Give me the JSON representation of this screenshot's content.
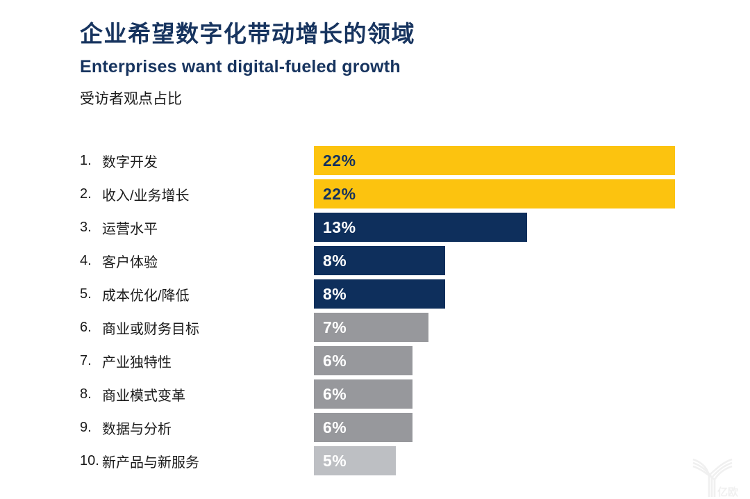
{
  "header": {
    "title": "企业希望数字化带动增长的领域",
    "subtitle": "Enterprises want digital-fueled growth",
    "note": "受访者观点占比"
  },
  "colors": {
    "title_text": "#17345F",
    "label_text": "#1B1B1B",
    "gold": "#FCC30F",
    "navy": "#0E2F5C",
    "gray": "#97989C",
    "lightgray": "#BDBFC3",
    "value_on_gold": "#14315E",
    "value_on_dark": "#FFFFFF",
    "watermark": "#F0F0F0"
  },
  "chart_data": {
    "type": "bar",
    "orientation": "horizontal",
    "title": "企业希望数字化带动增长的领域",
    "subtitle": "Enterprises want digital-fueled growth",
    "note": "受访者观点占比",
    "unit": "%",
    "max_value": 22,
    "grid": false,
    "legend": false,
    "categories": [
      "数字开发",
      "收入/业务增长",
      "运营水平",
      "客户体验",
      "成本优化/降低",
      "商业或财务目标",
      "产业独特性",
      "商业模式变革",
      "数据与分析",
      "新产品与新服务"
    ],
    "values": [
      22,
      22,
      13,
      8,
      8,
      7,
      6,
      6,
      6,
      5
    ],
    "items": [
      {
        "rank": "1.",
        "label": "数字开发",
        "value": 22,
        "value_label": "22%",
        "color": "gold"
      },
      {
        "rank": "2.",
        "label": "收入/业务增长",
        "value": 22,
        "value_label": "22%",
        "color": "gold"
      },
      {
        "rank": "3.",
        "label": "运营水平",
        "value": 13,
        "value_label": "13%",
        "color": "navy"
      },
      {
        "rank": "4.",
        "label": "客户体验",
        "value": 8,
        "value_label": "8%",
        "color": "navy"
      },
      {
        "rank": "5.",
        "label": "成本优化/降低",
        "value": 8,
        "value_label": "8%",
        "color": "navy"
      },
      {
        "rank": "6.",
        "label": "商业或财务目标",
        "value": 7,
        "value_label": "7%",
        "color": "gray"
      },
      {
        "rank": "7.",
        "label": "产业独特性",
        "value": 6,
        "value_label": "6%",
        "color": "gray"
      },
      {
        "rank": "8.",
        "label": "商业模式变革",
        "value": 6,
        "value_label": "6%",
        "color": "gray"
      },
      {
        "rank": "9.",
        "label": "数据与分析",
        "value": 6,
        "value_label": "6%",
        "color": "gray"
      },
      {
        "rank": "10.",
        "label": "新产品与新服务",
        "value": 5,
        "value_label": "5%",
        "color": "lightgray"
      }
    ]
  },
  "watermark": {
    "text": "亿欧"
  }
}
